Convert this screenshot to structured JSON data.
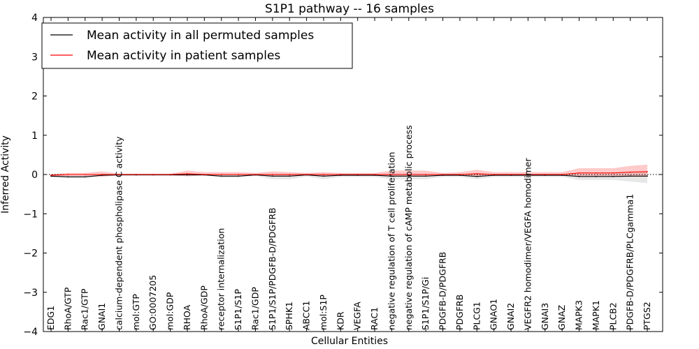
{
  "chart_data": {
    "type": "line",
    "title": "S1P1 pathway -- 16 samples",
    "xlabel": "Cellular Entities",
    "ylabel": "Inferred Activity",
    "ylim": [
      -4,
      4
    ],
    "yticks": [
      -4,
      -3,
      -2,
      -1,
      0,
      1,
      2,
      3,
      4
    ],
    "grid": false,
    "legend_position": "top-left",
    "categories": [
      "EDG1",
      "RhoA/GTP",
      "Rac1/GTP",
      "GNAI1",
      "calcium-dependent phospholipase C activity",
      "mol:GTP",
      "GO:0007205",
      "mol:GDP",
      "RHOA",
      "RhoA/GDP",
      "receptor internalization",
      "S1P1/S1P",
      "Rac1/GDP",
      "S1P1/S1P/PDGFB-D/PDGFRB",
      "SPHK1",
      "ABCC1",
      "mol:S1P",
      "KDR",
      "VEGFA",
      "RAC1",
      "negative regulation of T cell proliferation",
      "negative regulation of cAMP metabolic process",
      "S1P1/S1P/Gi",
      "PDGFB-D/PDGFRB",
      "PDGFRB",
      "PLCG1",
      "GNAO1",
      "GNAI2",
      "VEGFR2 homodimer/VEGFA homodimer",
      "GNAI3",
      "GNAZ",
      "MAPK3",
      "MAPK1",
      "PLCB2",
      "PDGFB-D/PDGFRB/PLCgamma1",
      "PTGS2"
    ],
    "series": [
      {
        "name": "Mean activity in all permuted samples",
        "color": "#000000",
        "values": [
          -0.04,
          -0.06,
          -0.06,
          -0.02,
          -0.01,
          -0.01,
          -0.01,
          -0.01,
          -0.01,
          -0.01,
          -0.04,
          -0.04,
          -0.01,
          -0.04,
          -0.04,
          -0.01,
          -0.04,
          -0.02,
          -0.02,
          -0.02,
          -0.04,
          -0.04,
          -0.04,
          -0.02,
          -0.02,
          -0.05,
          -0.02,
          -0.02,
          -0.02,
          -0.02,
          -0.02,
          -0.05,
          -0.05,
          -0.05,
          -0.04,
          -0.04
        ],
        "band_low": [
          -0.07,
          -0.08,
          -0.08,
          -0.04,
          -0.02,
          -0.02,
          -0.02,
          -0.02,
          -0.02,
          -0.02,
          -0.08,
          -0.08,
          -0.03,
          -0.12,
          -0.12,
          -0.05,
          -0.12,
          -0.06,
          -0.06,
          -0.06,
          -0.12,
          -0.12,
          -0.12,
          -0.06,
          -0.06,
          -0.12,
          -0.06,
          -0.06,
          -0.06,
          -0.06,
          -0.06,
          -0.14,
          -0.14,
          -0.14,
          -0.18,
          -0.22
        ],
        "band_high": [
          0.0,
          -0.02,
          -0.02,
          0.0,
          0.0,
          0.0,
          0.0,
          0.0,
          0.0,
          0.0,
          0.0,
          0.0,
          0.01,
          0.02,
          0.02,
          0.02,
          0.02,
          0.01,
          0.01,
          0.01,
          0.02,
          0.02,
          0.02,
          0.01,
          0.01,
          0.01,
          0.01,
          0.01,
          0.01,
          0.01,
          0.01,
          0.02,
          0.02,
          0.02,
          0.05,
          0.07
        ]
      },
      {
        "name": "Mean activity in patient samples",
        "color": "#ff0000",
        "values": [
          -0.02,
          0.0,
          0.0,
          0.0,
          0.0,
          0.0,
          0.0,
          0.0,
          0.02,
          0.0,
          0.0,
          0.0,
          0.0,
          0.0,
          0.0,
          0.0,
          0.0,
          0.0,
          0.0,
          0.0,
          0.0,
          0.0,
          0.0,
          0.0,
          0.0,
          0.02,
          0.0,
          0.0,
          0.0,
          0.0,
          0.0,
          0.04,
          0.04,
          0.04,
          0.06,
          0.07
        ],
        "band_low": [
          -0.06,
          -0.04,
          -0.04,
          -0.06,
          -0.02,
          -0.02,
          -0.02,
          -0.02,
          -0.05,
          -0.02,
          -0.02,
          -0.02,
          -0.02,
          -0.04,
          -0.04,
          -0.02,
          -0.04,
          -0.02,
          -0.02,
          -0.02,
          -0.04,
          -0.04,
          -0.04,
          -0.02,
          -0.02,
          -0.04,
          -0.02,
          -0.02,
          -0.02,
          -0.02,
          -0.02,
          -0.06,
          -0.06,
          -0.06,
          -0.06,
          -0.06
        ],
        "band_high": [
          0.01,
          0.04,
          0.04,
          0.08,
          0.02,
          0.02,
          0.02,
          0.02,
          0.1,
          0.06,
          0.06,
          0.06,
          0.04,
          0.08,
          0.06,
          0.04,
          0.06,
          0.04,
          0.04,
          0.04,
          0.1,
          0.1,
          0.1,
          0.04,
          0.06,
          0.12,
          0.06,
          0.06,
          0.06,
          0.06,
          0.06,
          0.16,
          0.16,
          0.16,
          0.22,
          0.25
        ]
      }
    ],
    "legend": [
      "Mean activity in all permuted samples",
      "Mean activity in patient samples"
    ]
  }
}
